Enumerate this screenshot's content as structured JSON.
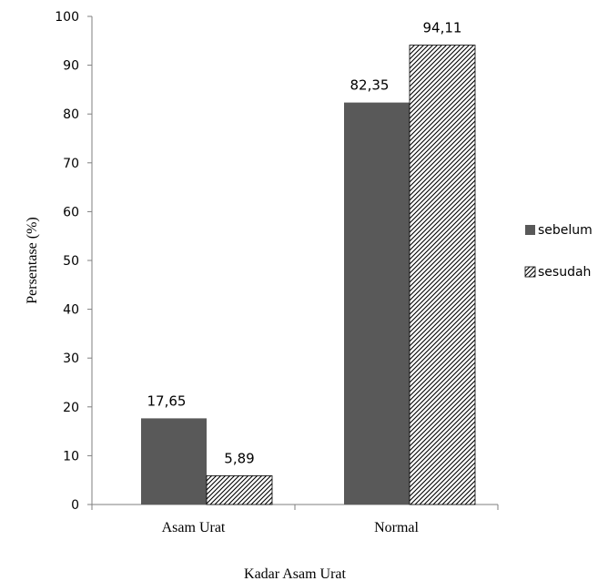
{
  "chart_data": {
    "type": "bar",
    "xlabel": "Kadar Asam Urat",
    "ylabel": "Persentase (%)",
    "categories": [
      "Asam Urat",
      "Normal"
    ],
    "series": [
      {
        "name": "sebelum",
        "values": [
          17.65,
          82.35
        ],
        "labels": [
          "17,65",
          "82,35"
        ],
        "color": "#595959",
        "fill": "solid"
      },
      {
        "name": "sesudah",
        "values": [
          5.89,
          94.11
        ],
        "labels": [
          "5,89",
          "94,11"
        ],
        "color": "#000000",
        "fill": "diagonal-hatch"
      }
    ],
    "ylim": [
      0,
      100
    ],
    "yticks": [
      0,
      10,
      20,
      30,
      40,
      50,
      60,
      70,
      80,
      90,
      100
    ],
    "grid": false,
    "legend_position": "right"
  }
}
